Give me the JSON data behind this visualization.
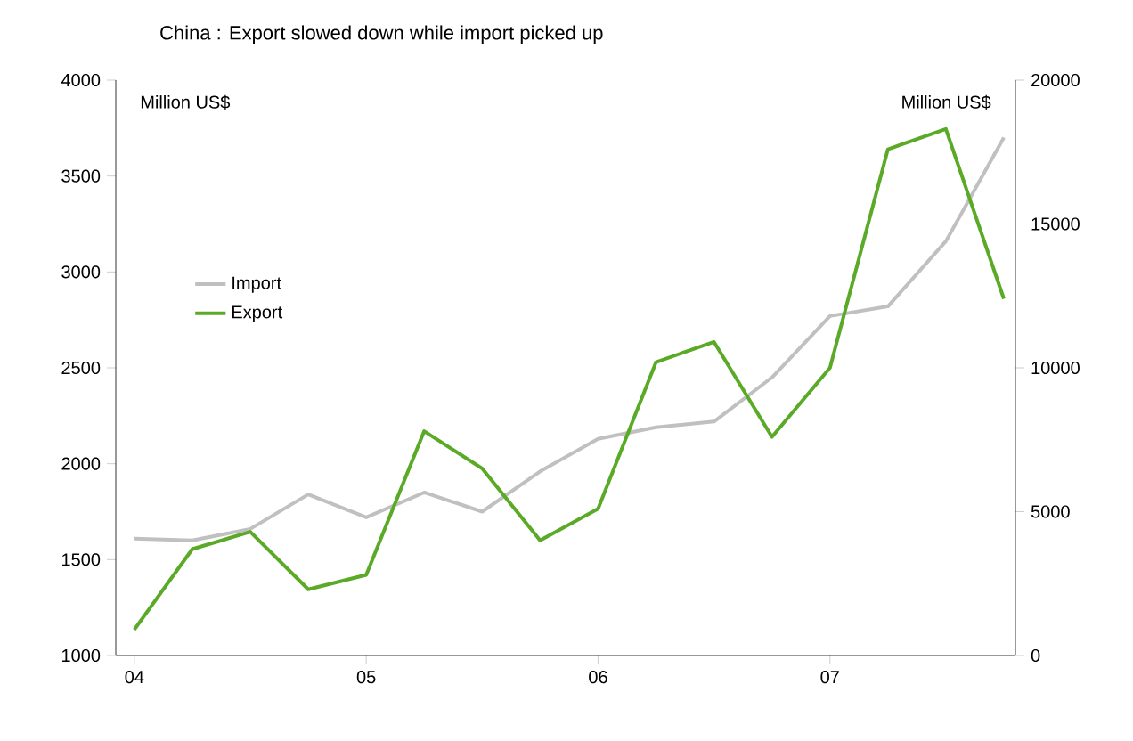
{
  "chart_data": {
    "type": "line",
    "title": "China : Export slowed down while import picked up",
    "ylabel": "Million US$",
    "y2label": "Million US$",
    "x": [
      2004,
      2004.25,
      2004.5,
      2004.75,
      2005,
      2005.25,
      2005.5,
      2005.75,
      2006,
      2006.25,
      2006.5,
      2006.75,
      2007,
      2007.25,
      2007.5,
      2007.75
    ],
    "series": [
      {
        "name": "Import",
        "color": "#c0c0c0",
        "values": [
          1610,
          1600,
          1660,
          1840,
          1720,
          1850,
          1750,
          1960,
          2130,
          2190,
          2220,
          2450,
          2770,
          2820,
          3160,
          3700
        ]
      },
      {
        "name": "Export",
        "color": "#5aaa28",
        "axis": "y2",
        "values": [
          900,
          3700,
          4300,
          2300,
          2800,
          7800,
          6500,
          4000,
          5100,
          10200,
          10900,
          7600,
          10000,
          17600,
          18300,
          12400
        ]
      }
    ],
    "xlim": [
      2003.92,
      2007.8
    ],
    "xticks": [
      {
        "value": 2004,
        "label": "04"
      },
      {
        "value": 2005,
        "label": "05"
      },
      {
        "value": 2006,
        "label": "06"
      },
      {
        "value": 2007,
        "label": "07"
      }
    ],
    "ylim": [
      1000,
      4000
    ],
    "yticks": [
      1000,
      1500,
      2000,
      2500,
      3000,
      3500,
      4000
    ],
    "y2lim": [
      0,
      20000
    ],
    "y2ticks": [
      0,
      5000,
      10000,
      15000,
      20000
    ],
    "grid": false,
    "legend": "left",
    "marker": "none",
    "line_style": "solid"
  }
}
